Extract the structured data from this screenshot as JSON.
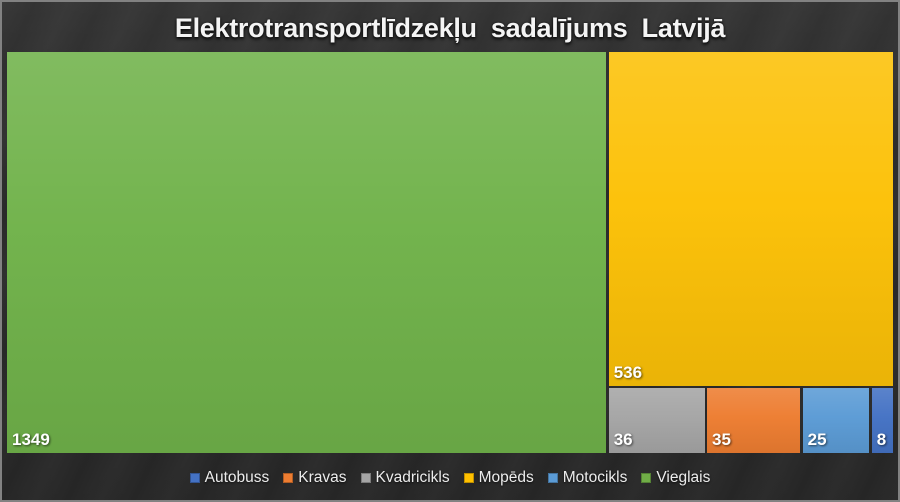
{
  "title": "Elektrotransportlīdzekļu sadalījums Latvijā",
  "chart_data": {
    "type": "treemap",
    "title": "Elektrotransportlīdzekļu sadalījums Latvijā",
    "legend_position": "bottom",
    "background": "#2e2e2e",
    "categories": [
      "Autobuss",
      "Kravas",
      "Kvadricikls",
      "Mopēds",
      "Motocikls",
      "Vieglais"
    ],
    "values": [
      8,
      35,
      36,
      536,
      25,
      1349
    ],
    "cells": [
      {
        "label": "Vieglais",
        "value": 1349,
        "color": "#70b24a"
      },
      {
        "label": "Mopēds",
        "value": 536,
        "color": "#fcc107"
      },
      {
        "label": "Kvadricikls",
        "value": 36,
        "color": "#a5a5a5"
      },
      {
        "label": "Kravas",
        "value": 35,
        "color": "#ed7d31"
      },
      {
        "label": "Motocikls",
        "value": 25,
        "color": "#5b9bd5"
      },
      {
        "label": "Autobuss",
        "value": 8,
        "color": "#4472c4"
      }
    ]
  },
  "legend": {
    "items": [
      {
        "label": "Autobuss",
        "color": "#4472c4"
      },
      {
        "label": "Kravas",
        "color": "#ed7d31"
      },
      {
        "label": "Kvadricikls",
        "color": "#a5a5a5"
      },
      {
        "label": "Mopēds",
        "color": "#ffc000"
      },
      {
        "label": "Motocikls",
        "color": "#5b9bd5"
      },
      {
        "label": "Vieglais",
        "color": "#70ad47"
      }
    ]
  }
}
